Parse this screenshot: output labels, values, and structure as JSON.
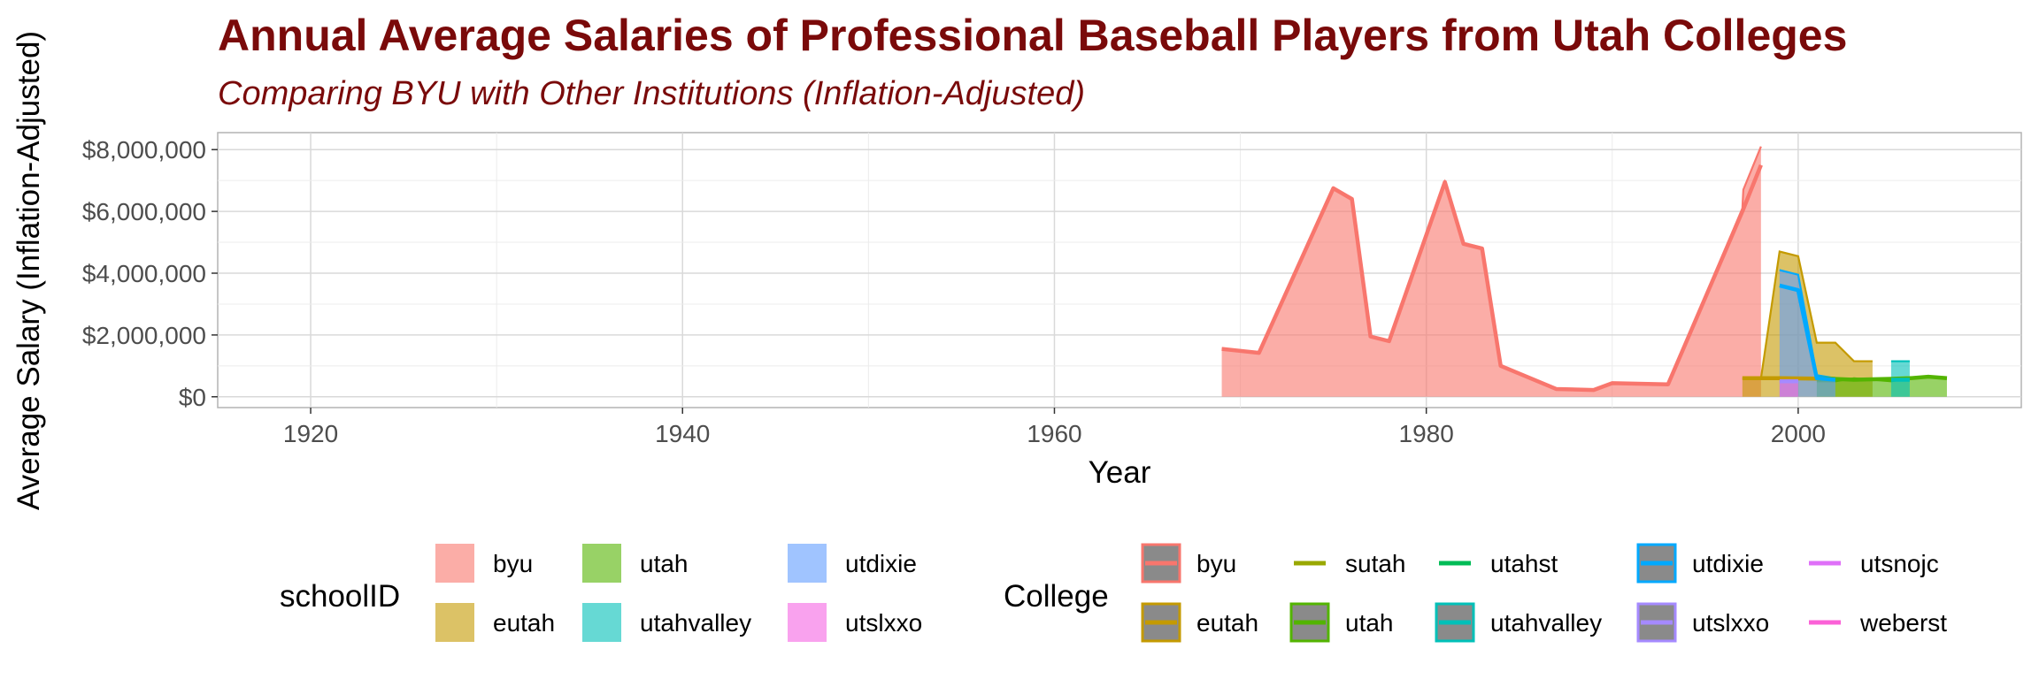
{
  "chart_data": {
    "type": "area",
    "title": "Annual Average Salaries of Professional Baseball Players from Utah Colleges",
    "subtitle": "Comparing BYU with Other Institutions (Inflation-Adjusted)",
    "xlabel": "Year",
    "ylabel": "Average Salary (Inflation-Adjusted)",
    "xlim": [
      1915,
      2012
    ],
    "ylim": [
      -350000,
      8550000
    ],
    "x_ticks": [
      1920,
      1940,
      1960,
      1980,
      2000
    ],
    "x_tick_labels": [
      "1920",
      "1940",
      "1960",
      "1980",
      "2000"
    ],
    "y_ticks": [
      0,
      2000000,
      4000000,
      6000000,
      8000000
    ],
    "y_tick_labels": [
      "$0",
      "$2,000,000",
      "$4,000,000",
      "$6,000,000",
      "$8,000,000"
    ],
    "grid": true,
    "legend_placement": "bottom",
    "series": [
      {
        "name": "byu",
        "color": "#f8766d",
        "points": [
          [
            1969,
            1550000
          ],
          [
            1971,
            1420000
          ],
          [
            1975,
            6750000
          ],
          [
            1976,
            6400000
          ],
          [
            1977,
            1950000
          ],
          [
            1978,
            1800000
          ],
          [
            1981,
            6950000
          ],
          [
            1982,
            4950000
          ],
          [
            1983,
            4800000
          ],
          [
            1984,
            1000000
          ],
          [
            1987,
            250000
          ],
          [
            1989,
            220000
          ],
          [
            1990,
            440000
          ],
          [
            1993,
            400000
          ],
          [
            1997,
            6100000
          ],
          [
            1997.05,
            6700000
          ],
          [
            1998,
            8100000
          ]
        ],
        "line_points": [
          [
            1969,
            1550000
          ],
          [
            1971,
            1420000
          ],
          [
            1975,
            6750000
          ],
          [
            1976,
            6400000
          ],
          [
            1977,
            1950000
          ],
          [
            1978,
            1800000
          ],
          [
            1981,
            6950000
          ],
          [
            1982,
            4950000
          ],
          [
            1983,
            4800000
          ],
          [
            1984,
            1000000
          ],
          [
            1987,
            250000
          ],
          [
            1989,
            220000
          ],
          [
            1990,
            440000
          ],
          [
            1993,
            400000
          ],
          [
            1997,
            6000000
          ],
          [
            1998,
            7500000
          ]
        ]
      },
      {
        "name": "eutah",
        "color": "#c49a00",
        "points": [
          [
            1997,
            600000
          ],
          [
            1998,
            600000
          ],
          [
            1999,
            4700000
          ],
          [
            2000,
            4550000
          ],
          [
            2001,
            1750000
          ],
          [
            2002,
            1750000
          ],
          [
            2003,
            1150000
          ],
          [
            2004,
            1150000
          ]
        ],
        "line_points": [
          [
            1997,
            600000
          ],
          [
            1999,
            600000
          ],
          [
            2002,
            580000
          ]
        ]
      },
      {
        "name": "utah",
        "color": "#53b400",
        "points": [
          [
            2001,
            500000
          ],
          [
            2002,
            500000
          ],
          [
            2003,
            600000
          ],
          [
            2004,
            550000
          ],
          [
            2005,
            500000
          ],
          [
            2006,
            600000
          ],
          [
            2007,
            650000
          ],
          [
            2008,
            600000
          ]
        ],
        "line_points": [
          [
            2001,
            600000
          ],
          [
            2003,
            550000
          ],
          [
            2005,
            580000
          ],
          [
            2006,
            600000
          ],
          [
            2007,
            650000
          ],
          [
            2008,
            600000
          ]
        ]
      },
      {
        "name": "utahvalley",
        "color": "#00c0b8",
        "points": [
          [
            2005,
            1150000
          ],
          [
            2006,
            1150000
          ]
        ],
        "line_points": [
          [
            2005,
            550000
          ],
          [
            2006,
            550000
          ]
        ]
      },
      {
        "name": "utdixie",
        "color": "#619cff",
        "points": [
          [
            1999,
            4100000
          ],
          [
            2000,
            3950000
          ],
          [
            2001,
            700000
          ],
          [
            2002,
            600000
          ]
        ],
        "line_points": [
          [
            1999,
            3600000
          ],
          [
            2000,
            3450000
          ],
          [
            2001,
            600000
          ],
          [
            2002,
            550000
          ]
        ]
      },
      {
        "name": "utslxxo",
        "color": "#f564e3",
        "points": [
          [
            1999,
            500000
          ],
          [
            2000,
            500000
          ]
        ],
        "line_points": [
          [
            1999,
            500000
          ],
          [
            2000,
            500000
          ]
        ]
      }
    ],
    "legends": [
      {
        "title": "schoolID",
        "entries": [
          "byu",
          "eutah",
          "utah",
          "utahvalley",
          "utdixie",
          "utslxxo"
        ]
      },
      {
        "title": "College",
        "entries": [
          "byu",
          "eutah",
          "sutah",
          "utah",
          "utahst",
          "utahvalley",
          "utdixie",
          "utslxxo",
          "utsnojc",
          "weberst"
        ]
      }
    ]
  },
  "colors": {
    "byu": "#f8766d",
    "eutah": "#c49a00",
    "sutah": "#99a800",
    "utah": "#53b400",
    "utahst": "#00bc56",
    "utahvalley": "#00c0b8",
    "utdixie": "#00a9ff",
    "utslxxo": "#a58aff",
    "utsnojc": "#df70f8",
    "weberst": "#fb61d7"
  }
}
